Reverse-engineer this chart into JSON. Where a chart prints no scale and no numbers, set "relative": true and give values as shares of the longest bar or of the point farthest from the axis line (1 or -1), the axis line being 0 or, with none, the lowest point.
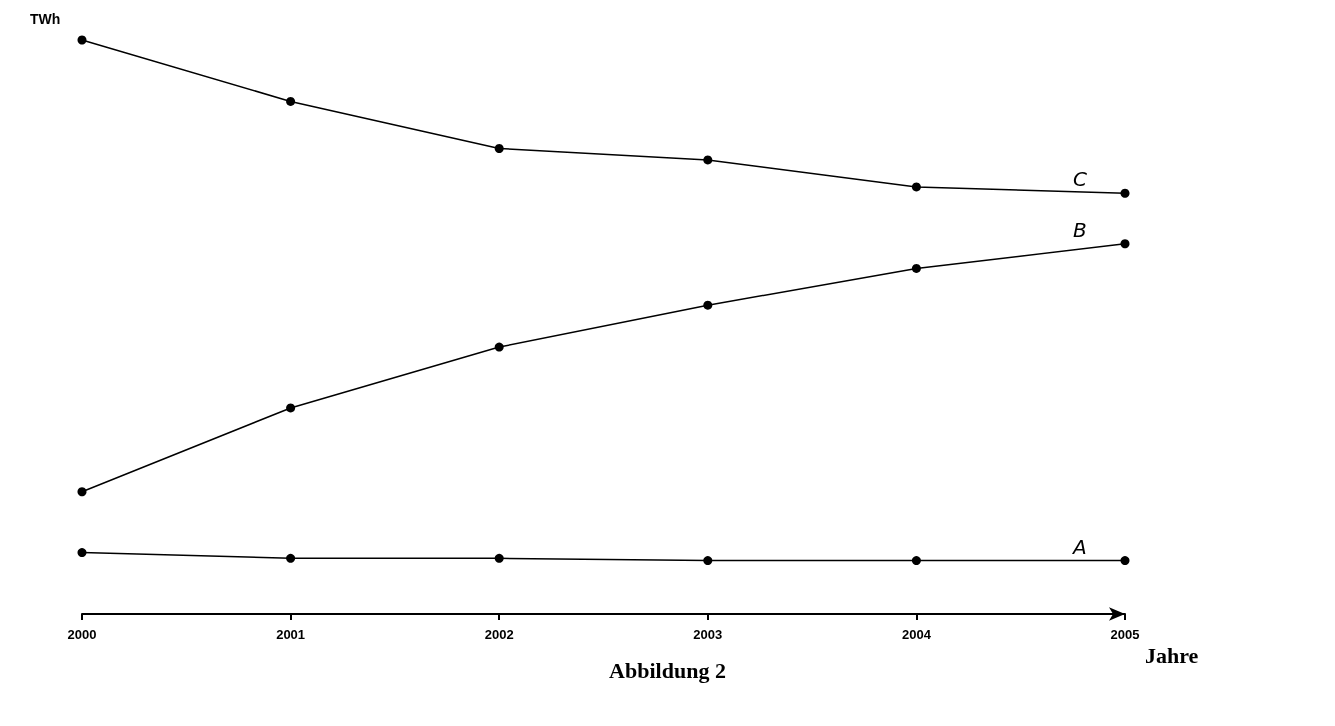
{
  "chart_data": {
    "type": "line",
    "title": "Abbildung 2",
    "xlabel": "Jahre",
    "ylabel": "TWh",
    "relative": true,
    "marker": "circle",
    "line_style": "solid",
    "grid": false,
    "legend": false,
    "categories": [
      "2000",
      "2001",
      "2002",
      "2003",
      "2004",
      "2005"
    ],
    "series": [
      {
        "name": "C",
        "color": "#000000",
        "values": [
          1,
          0.893,
          0.811,
          0.791,
          0.744,
          0.733
        ]
      },
      {
        "name": "B",
        "color": "#000000",
        "values": [
          0.213,
          0.359,
          0.465,
          0.538,
          0.602,
          0.645
        ]
      },
      {
        "name": "A",
        "color": "#000000",
        "values": [
          0.107,
          0.097,
          0.097,
          0.093,
          0.093,
          0.093
        ]
      }
    ]
  }
}
